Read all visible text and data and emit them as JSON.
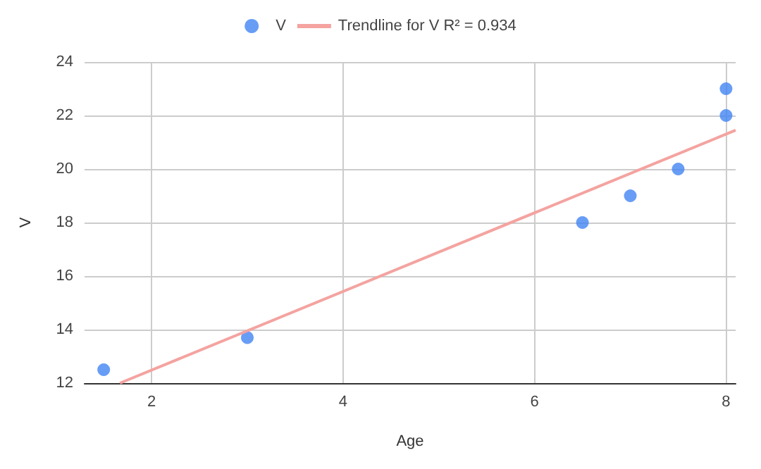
{
  "chart_data": {
    "type": "scatter",
    "xlabel": "Age",
    "ylabel": "V",
    "series": [
      {
        "name": "V",
        "color": "#4285f4",
        "marker": "circle",
        "x": [
          1.5,
          3,
          6.5,
          7,
          7.5,
          8,
          8
        ],
        "values": [
          12.5,
          13.7,
          18,
          19,
          20,
          22,
          23
        ]
      },
      {
        "name": "Trendline for V R² = 0.934",
        "type": "line",
        "marker": "none",
        "color": "#f4a3a0",
        "x": [
          1.67,
          8.1
        ],
        "values": [
          12,
          21.45
        ]
      }
    ],
    "xlim": [
      1.3,
      8.1
    ],
    "xticks": [
      2,
      4,
      6,
      8
    ],
    "ylim": [
      12,
      24
    ],
    "yticks": [
      12,
      14,
      16,
      18,
      20,
      22,
      24
    ],
    "grid": true,
    "legend": "top"
  }
}
